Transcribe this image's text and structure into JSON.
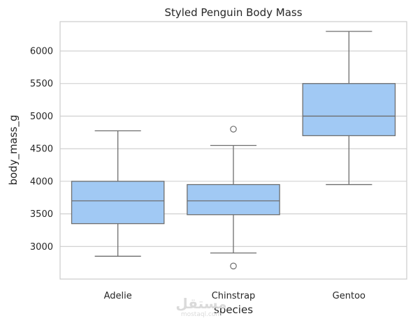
{
  "chart_data": {
    "type": "box",
    "title": "Styled Penguin Body Mass",
    "xlabel": "species",
    "ylabel": "body_mass_g",
    "ylim": [
      2500,
      6450
    ],
    "yticks": [
      3000,
      3500,
      4000,
      4500,
      5000,
      5500,
      6000
    ],
    "grid": "horizontal",
    "box_color": "#a1c9f4",
    "line_color": "#6e6e6e",
    "categories": [
      "Adelie",
      "Chinstrap",
      "Gentoo"
    ],
    "boxes": [
      {
        "category": "Adelie",
        "whisker_low": 2850,
        "q1": 3350,
        "median": 3700,
        "q3": 4000,
        "whisker_high": 4775,
        "outliers": []
      },
      {
        "category": "Chinstrap",
        "whisker_low": 2900,
        "q1": 3487.5,
        "median": 3700,
        "q3": 3950,
        "whisker_high": 4550,
        "outliers": [
          4800,
          2700
        ]
      },
      {
        "category": "Gentoo",
        "whisker_low": 3950,
        "q1": 4700,
        "median": 5000,
        "q3": 5500,
        "whisker_high": 6300,
        "outliers": []
      }
    ]
  },
  "watermark": {
    "text": "مستقل",
    "subtext": "mostaql.com"
  }
}
